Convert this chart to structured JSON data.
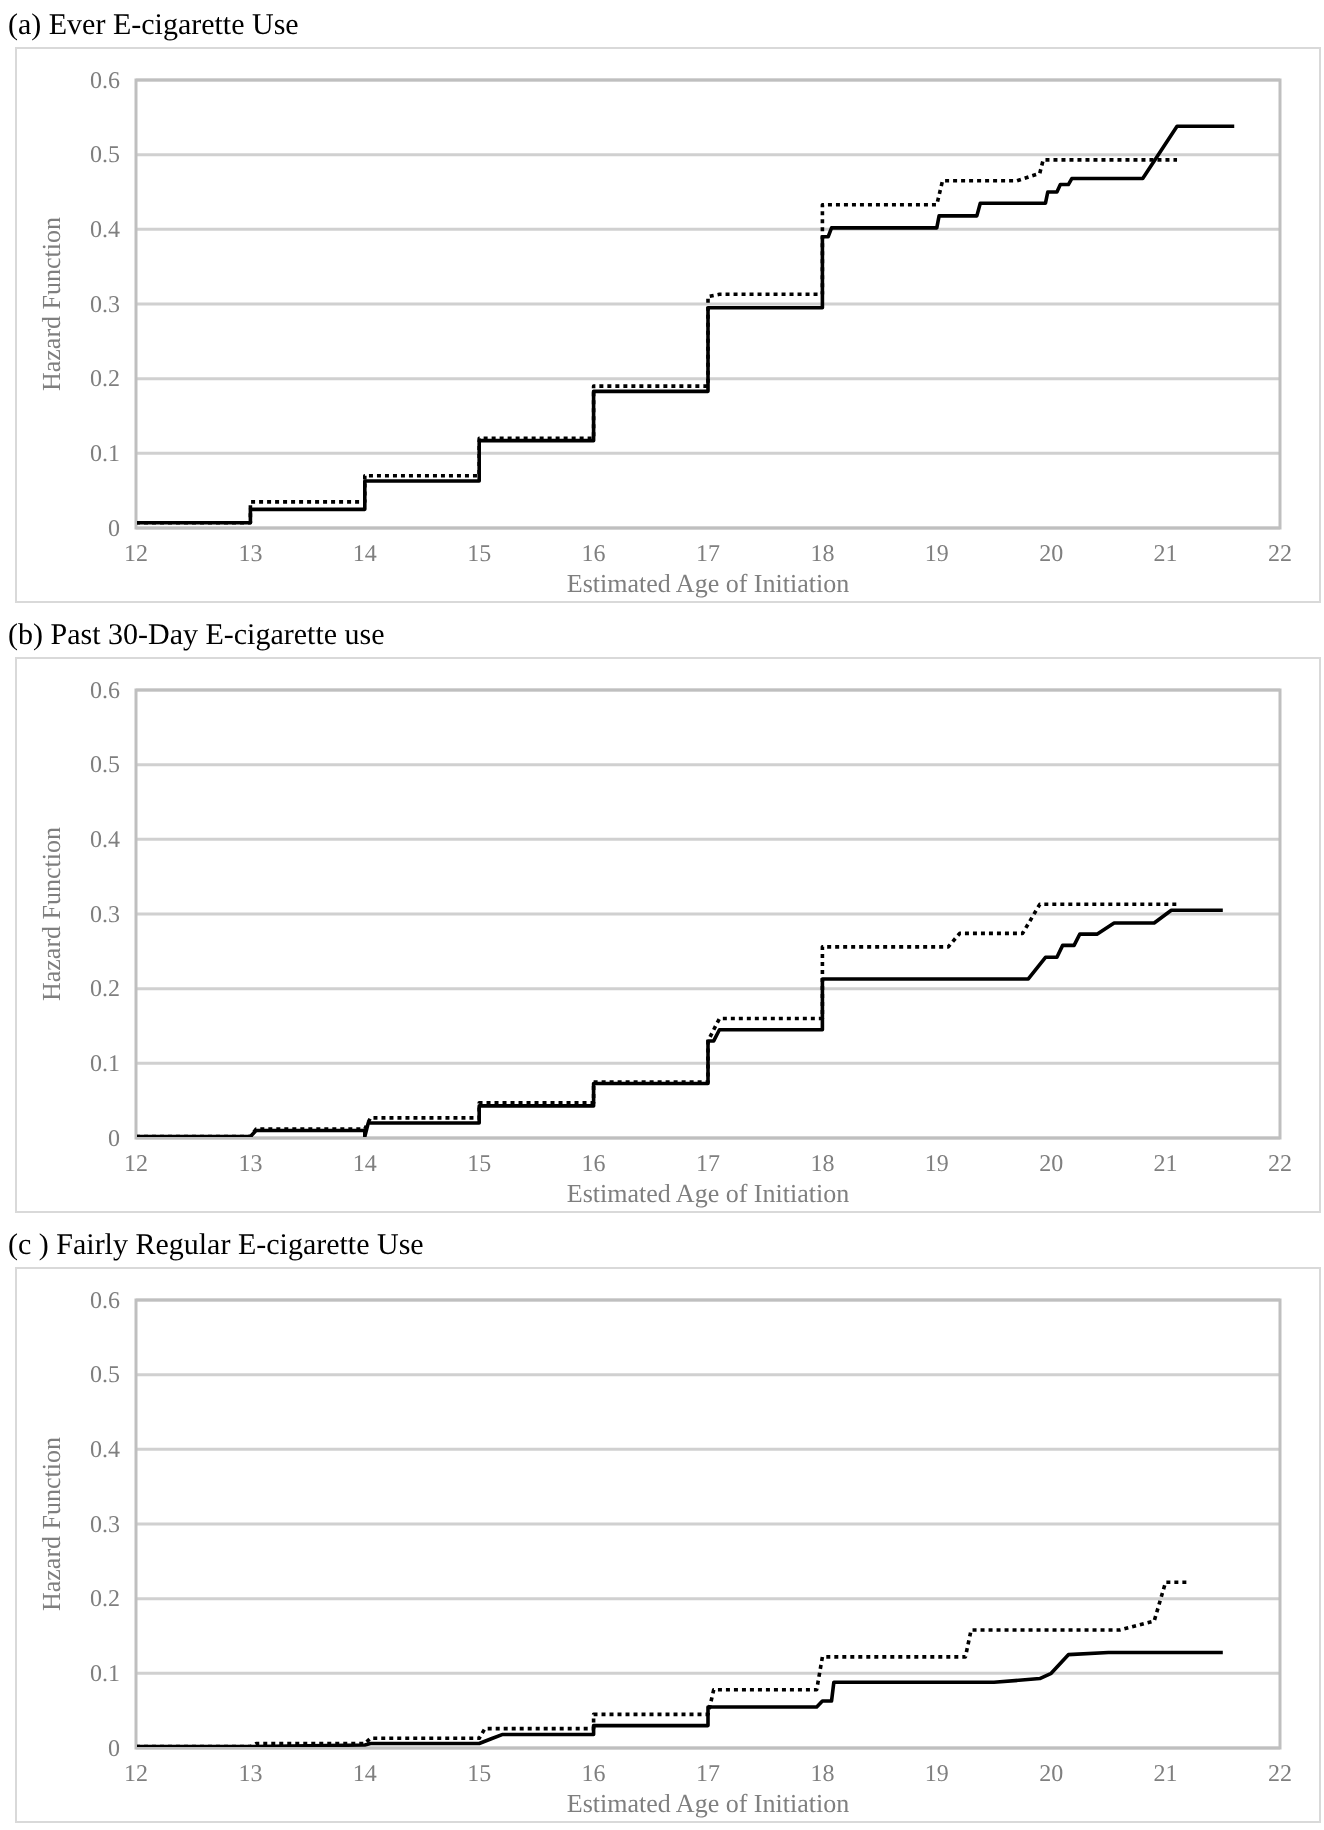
{
  "chart_data": [
    {
      "type": "line",
      "title": "(a) Ever E-cigarette Use",
      "xlabel": "Estimated Age of Initiation",
      "ylabel": "Hazard Function",
      "xlim": [
        12,
        22
      ],
      "xticks": [
        12,
        13,
        14,
        15,
        16,
        17,
        18,
        19,
        20,
        21,
        22
      ],
      "ylim": [
        0,
        0.6
      ],
      "yticks": [
        0,
        0.1,
        0.2,
        0.3,
        0.4,
        0.5,
        0.6
      ],
      "grid": "y",
      "marker": "none",
      "series": [
        {
          "color": "#000000",
          "line_style": "solid",
          "x": [
            12,
            13,
            13,
            14,
            14,
            15,
            15,
            16,
            16,
            17,
            17,
            18,
            18,
            18.05,
            18.08,
            19,
            19.02,
            19.35,
            19.38,
            19.95,
            19.97,
            20.05,
            20.08,
            20.15,
            20.18,
            20.8,
            21.1,
            21.6
          ],
          "values": [
            0.007,
            0.007,
            0.025,
            0.025,
            0.063,
            0.063,
            0.117,
            0.117,
            0.183,
            0.183,
            0.295,
            0.295,
            0.39,
            0.39,
            0.402,
            0.402,
            0.418,
            0.418,
            0.435,
            0.435,
            0.45,
            0.45,
            0.46,
            0.46,
            0.468,
            0.468,
            0.538,
            0.538
          ]
        },
        {
          "color": "#000000",
          "line_style": "dotted",
          "x": [
            12,
            13,
            13,
            14,
            14,
            15,
            15,
            16,
            16,
            17,
            17,
            17.1,
            18,
            18,
            19,
            19.05,
            19.7,
            19.9,
            19.93,
            21.1
          ],
          "values": [
            0.007,
            0.007,
            0.035,
            0.035,
            0.07,
            0.07,
            0.12,
            0.12,
            0.19,
            0.19,
            0.31,
            0.313,
            0.313,
            0.433,
            0.433,
            0.465,
            0.465,
            0.475,
            0.493,
            0.493
          ]
        }
      ]
    },
    {
      "type": "line",
      "title": "(b) Past 30-Day E-cigarette use",
      "xlabel": "Estimated Age of Initiation",
      "ylabel": "Hazard Function",
      "xlim": [
        12,
        22
      ],
      "xticks": [
        12,
        13,
        14,
        15,
        16,
        17,
        18,
        19,
        20,
        21,
        22
      ],
      "ylim": [
        0,
        0.6
      ],
      "yticks": [
        0,
        0.1,
        0.2,
        0.3,
        0.4,
        0.5,
        0.6
      ],
      "grid": "y",
      "marker": "none",
      "series": [
        {
          "color": "#000000",
          "line_style": "solid",
          "x": [
            12,
            13,
            13.05,
            14,
            14,
            14.03,
            15,
            15,
            16,
            16,
            17,
            17,
            17.05,
            17.1,
            18,
            18,
            19.8,
            19.95,
            20.05,
            20.1,
            20.2,
            20.25,
            20.4,
            20.55,
            20.9,
            21.05,
            21.5
          ],
          "values": [
            0.002,
            0.002,
            0.01,
            0.01,
            0.002,
            0.02,
            0.02,
            0.043,
            0.043,
            0.073,
            0.073,
            0.13,
            0.13,
            0.145,
            0.145,
            0.213,
            0.213,
            0.242,
            0.242,
            0.258,
            0.258,
            0.273,
            0.273,
            0.288,
            0.288,
            0.305,
            0.305
          ]
        },
        {
          "color": "#000000",
          "line_style": "dotted",
          "x": [
            12,
            13,
            13.05,
            14,
            14.05,
            15,
            15,
            16,
            16,
            17,
            17,
            17.1,
            18,
            18,
            19.1,
            19.2,
            19.75,
            19.9,
            21.1
          ],
          "values": [
            0.002,
            0.002,
            0.012,
            0.012,
            0.027,
            0.027,
            0.047,
            0.047,
            0.075,
            0.075,
            0.13,
            0.16,
            0.16,
            0.256,
            0.256,
            0.274,
            0.274,
            0.313,
            0.313
          ]
        }
      ]
    },
    {
      "type": "line",
      "title": "(c ) Fairly Regular E-cigarette Use",
      "xlabel": "Estimated Age of Initiation",
      "ylabel": "Hazard Function",
      "xlim": [
        12,
        22
      ],
      "xticks": [
        12,
        13,
        14,
        15,
        16,
        17,
        18,
        19,
        20,
        21,
        22
      ],
      "ylim": [
        0,
        0.6
      ],
      "yticks": [
        0,
        0.1,
        0.2,
        0.3,
        0.4,
        0.5,
        0.6
      ],
      "grid": "y",
      "marker": "none",
      "series": [
        {
          "color": "#000000",
          "line_style": "solid",
          "x": [
            12,
            13,
            14,
            14.05,
            15,
            15.1,
            15.2,
            16,
            16,
            17,
            17,
            17.95,
            18,
            18.08,
            18.1,
            19.5,
            19.9,
            20,
            20.15,
            20.5,
            21.5
          ],
          "values": [
            0.002,
            0.002,
            0.004,
            0.006,
            0.006,
            0.012,
            0.018,
            0.018,
            0.03,
            0.03,
            0.055,
            0.055,
            0.063,
            0.063,
            0.088,
            0.088,
            0.093,
            0.1,
            0.125,
            0.128,
            0.128
          ]
        },
        {
          "color": "#000000",
          "line_style": "dotted",
          "x": [
            12,
            13,
            13.05,
            14,
            14.05,
            15,
            15.05,
            16,
            16,
            17,
            17.05,
            17.95,
            18,
            19.25,
            19.3,
            20.6,
            20.9,
            21,
            21.2
          ],
          "values": [
            0.002,
            0.002,
            0.006,
            0.006,
            0.013,
            0.013,
            0.026,
            0.026,
            0.045,
            0.045,
            0.078,
            0.078,
            0.122,
            0.122,
            0.158,
            0.158,
            0.17,
            0.222,
            0.222
          ]
        }
      ]
    }
  ]
}
